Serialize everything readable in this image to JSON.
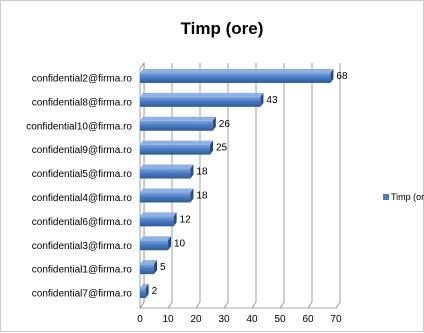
{
  "chart_data": {
    "type": "bar",
    "orientation": "horizontal",
    "title": "Timp (ore)",
    "categories": [
      "confidential2@firma.ro",
      "confidential8@firma.ro",
      "confidential10@firma.ro",
      "confidential9@firma.ro",
      "confidential5@firma.ro",
      "confidential4@firma.ro",
      "confidential6@firma.ro",
      "confidential3@firma.ro",
      "confidential1@firma.ro",
      "confidential7@firma.ro"
    ],
    "series": [
      {
        "name": "Timp (ore)",
        "values": [
          68,
          43,
          26,
          25,
          18,
          18,
          12,
          10,
          5,
          2
        ]
      }
    ],
    "xlim": [
      0,
      70
    ],
    "xticks": [
      0,
      10,
      20,
      30,
      40,
      50,
      60,
      70
    ],
    "grid": true,
    "legend_position": "right",
    "bar_color": "#4a7cc3"
  }
}
